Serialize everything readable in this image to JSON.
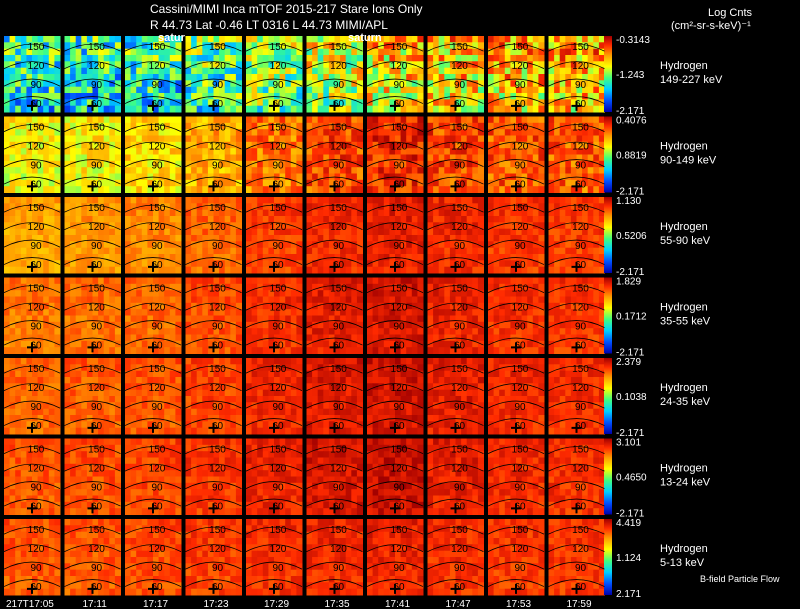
{
  "header": {
    "title": "Cassini/MIMI Inca mTOF  2015-217   Stare   Ions Only",
    "position_line": "R         44.73 Lat -0.46 LT 0316 L          44.73  MIMI/APL",
    "saturn_labels": [
      "satur",
      "saturn"
    ],
    "colorbar_title": "Log Cnts",
    "colorbar_units": "(cm²-sr-s-keV)⁻¹"
  },
  "footer": {
    "note": "B-field Particle Flow"
  },
  "chart_data": {
    "type": "heatmap",
    "title": "Cassini/MIMI Inca mTOF  2015-217   Stare   Ions Only",
    "x": [
      "217T17:05",
      "17:11",
      "17:17",
      "17:23",
      "17:29",
      "17:35",
      "17:41",
      "17:47",
      "17:53",
      "17:59"
    ],
    "contour_labels": [
      "150",
      "120",
      "90",
      "60"
    ],
    "rows": [
      {
        "species": "Hydrogen",
        "energy": "149-227 keV",
        "cbar": [
          "-0.3143",
          "-1.243",
          "-2.171"
        ],
        "vmin": -2.171,
        "vmax": -0.3143,
        "levels": [
          0.42,
          0.4,
          0.42,
          0.48,
          0.55,
          0.62,
          0.7,
          0.72,
          0.74,
          0.74
        ]
      },
      {
        "species": "Hydrogen",
        "energy": "90-149 keV",
        "cbar": [
          "0.4076",
          "0.8819",
          "-2.171"
        ],
        "vmin": -2.171,
        "vmax": 0.4076,
        "levels": [
          0.62,
          0.63,
          0.66,
          0.72,
          0.8,
          0.86,
          0.9,
          0.86,
          0.84,
          0.83
        ]
      },
      {
        "species": "Hydrogen",
        "energy": "55-90 keV",
        "cbar": [
          "1.130",
          "0.5206",
          "-2.171"
        ],
        "vmin": -2.171,
        "vmax": 1.13,
        "levels": [
          0.74,
          0.76,
          0.78,
          0.82,
          0.87,
          0.9,
          0.92,
          0.9,
          0.88,
          0.87
        ]
      },
      {
        "species": "Hydrogen",
        "energy": "35-55 keV",
        "cbar": [
          "1.829",
          "0.1712",
          "-2.171"
        ],
        "vmin": -2.171,
        "vmax": 1.829,
        "levels": [
          0.8,
          0.81,
          0.82,
          0.85,
          0.89,
          0.92,
          0.94,
          0.91,
          0.89,
          0.88
        ]
      },
      {
        "species": "Hydrogen",
        "energy": "24-35 keV",
        "cbar": [
          "2.379",
          "0.1038",
          "-2.171"
        ],
        "vmin": -2.171,
        "vmax": 2.379,
        "levels": [
          0.82,
          0.83,
          0.84,
          0.86,
          0.9,
          0.93,
          0.95,
          0.92,
          0.9,
          0.89
        ]
      },
      {
        "species": "Hydrogen",
        "energy": "13-24 keV",
        "cbar": [
          "3.101",
          "0.4650",
          "-2.171"
        ],
        "vmin": -2.171,
        "vmax": 3.101,
        "levels": [
          0.84,
          0.85,
          0.86,
          0.88,
          0.91,
          0.94,
          0.96,
          0.92,
          0.9,
          0.89
        ]
      },
      {
        "species": "Hydrogen",
        "energy": "5-13 keV",
        "cbar": [
          "4.419",
          "1.124",
          "2.171"
        ],
        "vmin": 2.171,
        "vmax": 4.419,
        "levels": [
          0.84,
          0.84,
          0.85,
          0.87,
          0.89,
          0.9,
          0.91,
          0.89,
          0.88,
          0.88
        ]
      }
    ]
  }
}
